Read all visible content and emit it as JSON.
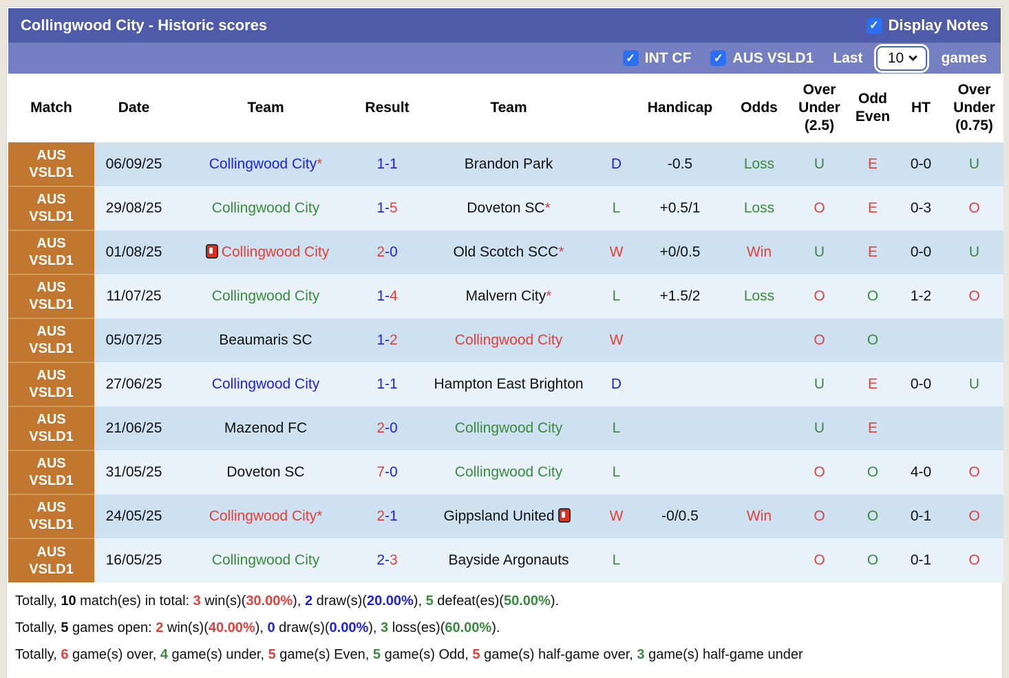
{
  "title_bar": {
    "title": "Collingwood City - Historic scores",
    "display_notes": {
      "label": "Display Notes",
      "checked": true
    }
  },
  "filter_bar": {
    "checkboxes": [
      {
        "label": "INT CF",
        "checked": true
      },
      {
        "label": "AUS VSLD1",
        "checked": true
      }
    ],
    "last_label": "Last",
    "games_count": "10",
    "games_label": "games"
  },
  "colors": {
    "title_bar_bg": "#4d5ba8",
    "filter_bar_bg": "#737fc1",
    "league_badge_bg": "#c1772f",
    "row_odd_bg": "#cde1f0",
    "row_even_bg": "#e9f2f9",
    "win_red": "#e2403a",
    "loss_green": "#3a8a3e",
    "draw_blue": "#2222dd",
    "checkbox_blue": "#2b6ff2"
  },
  "table": {
    "columns": [
      "Match",
      "Date",
      "Team",
      "Result",
      "Team",
      "",
      "Handicap",
      "Odds",
      "Over\nUnder\n(2.5)",
      "Odd\nEven",
      "HT",
      "Over\nUnder\n(0.75)"
    ],
    "rows": [
      {
        "league": "AUS VSLD1",
        "date": "06/09/25",
        "home": {
          "name": "Collingwood City",
          "color": "blue",
          "star": true,
          "icon": null,
          "icon_pos": null
        },
        "score": [
          {
            "t": "1",
            "c": "blue"
          },
          {
            "t": "1",
            "c": "blue"
          }
        ],
        "away": {
          "name": "Brandon Park",
          "color": "black",
          "star": false,
          "icon": null,
          "icon_pos": null
        },
        "letter": {
          "t": "D",
          "c": "blue"
        },
        "handicap": "-0.5",
        "odds": {
          "t": "Loss",
          "c": "green"
        },
        "ou25": {
          "t": "U",
          "c": "green"
        },
        "oe": {
          "t": "E",
          "c": "red"
        },
        "ht": "0-0",
        "ou075": {
          "t": "U",
          "c": "green"
        }
      },
      {
        "league": "AUS VSLD1",
        "date": "29/08/25",
        "home": {
          "name": "Collingwood City",
          "color": "green",
          "star": false,
          "icon": null,
          "icon_pos": null
        },
        "score": [
          {
            "t": "1",
            "c": "blue"
          },
          {
            "t": "5",
            "c": "red"
          }
        ],
        "away": {
          "name": "Doveton SC",
          "color": "black",
          "star": true,
          "icon": null,
          "icon_pos": null
        },
        "letter": {
          "t": "L",
          "c": "green"
        },
        "handicap": "+0.5/1",
        "odds": {
          "t": "Loss",
          "c": "green"
        },
        "ou25": {
          "t": "O",
          "c": "red"
        },
        "oe": {
          "t": "E",
          "c": "red"
        },
        "ht": "0-3",
        "ou075": {
          "t": "O",
          "c": "red"
        }
      },
      {
        "league": "AUS VSLD1",
        "date": "01/08/25",
        "home": {
          "name": "Collingwood City",
          "color": "red",
          "star": false,
          "icon": "red-card-icon",
          "icon_pos": "before"
        },
        "score": [
          {
            "t": "2",
            "c": "red"
          },
          {
            "t": "0",
            "c": "blue"
          }
        ],
        "away": {
          "name": "Old Scotch SCC",
          "color": "black",
          "star": true,
          "icon": null,
          "icon_pos": null
        },
        "letter": {
          "t": "W",
          "c": "red"
        },
        "handicap": "+0/0.5",
        "odds": {
          "t": "Win",
          "c": "red"
        },
        "ou25": {
          "t": "U",
          "c": "green"
        },
        "oe": {
          "t": "E",
          "c": "red"
        },
        "ht": "0-0",
        "ou075": {
          "t": "U",
          "c": "green"
        }
      },
      {
        "league": "AUS VSLD1",
        "date": "11/07/25",
        "home": {
          "name": "Collingwood City",
          "color": "green",
          "star": false,
          "icon": null,
          "icon_pos": null
        },
        "score": [
          {
            "t": "1",
            "c": "blue"
          },
          {
            "t": "4",
            "c": "red"
          }
        ],
        "away": {
          "name": "Malvern City",
          "color": "black",
          "star": true,
          "icon": null,
          "icon_pos": null
        },
        "letter": {
          "t": "L",
          "c": "green"
        },
        "handicap": "+1.5/2",
        "odds": {
          "t": "Loss",
          "c": "green"
        },
        "ou25": {
          "t": "O",
          "c": "red"
        },
        "oe": {
          "t": "O",
          "c": "green"
        },
        "ht": "1-2",
        "ou075": {
          "t": "O",
          "c": "red"
        }
      },
      {
        "league": "AUS VSLD1",
        "date": "05/07/25",
        "home": {
          "name": "Beaumaris SC",
          "color": "black",
          "star": false,
          "icon": null,
          "icon_pos": null
        },
        "score": [
          {
            "t": "1",
            "c": "blue"
          },
          {
            "t": "2",
            "c": "red"
          }
        ],
        "away": {
          "name": "Collingwood City",
          "color": "red",
          "star": false,
          "icon": null,
          "icon_pos": null
        },
        "letter": {
          "t": "W",
          "c": "red"
        },
        "handicap": "",
        "odds": {
          "t": "",
          "c": "black"
        },
        "ou25": {
          "t": "O",
          "c": "red"
        },
        "oe": {
          "t": "O",
          "c": "green"
        },
        "ht": "",
        "ou075": {
          "t": "",
          "c": "black"
        }
      },
      {
        "league": "AUS VSLD1",
        "date": "27/06/25",
        "home": {
          "name": "Collingwood City",
          "color": "blue",
          "star": false,
          "icon": null,
          "icon_pos": null
        },
        "score": [
          {
            "t": "1",
            "c": "blue"
          },
          {
            "t": "1",
            "c": "blue"
          }
        ],
        "away": {
          "name": "Hampton East Brighton",
          "color": "black",
          "star": false,
          "icon": null,
          "icon_pos": null
        },
        "letter": {
          "t": "D",
          "c": "blue"
        },
        "handicap": "",
        "odds": {
          "t": "",
          "c": "black"
        },
        "ou25": {
          "t": "U",
          "c": "green"
        },
        "oe": {
          "t": "E",
          "c": "red"
        },
        "ht": "0-0",
        "ou075": {
          "t": "U",
          "c": "green"
        }
      },
      {
        "league": "AUS VSLD1",
        "date": "21/06/25",
        "home": {
          "name": "Mazenod FC",
          "color": "black",
          "star": false,
          "icon": null,
          "icon_pos": null
        },
        "score": [
          {
            "t": "2",
            "c": "red"
          },
          {
            "t": "0",
            "c": "blue"
          }
        ],
        "away": {
          "name": "Collingwood City",
          "color": "green",
          "star": false,
          "icon": null,
          "icon_pos": null
        },
        "letter": {
          "t": "L",
          "c": "green"
        },
        "handicap": "",
        "odds": {
          "t": "",
          "c": "black"
        },
        "ou25": {
          "t": "U",
          "c": "green"
        },
        "oe": {
          "t": "E",
          "c": "red"
        },
        "ht": "",
        "ou075": {
          "t": "",
          "c": "black"
        }
      },
      {
        "league": "AUS VSLD1",
        "date": "31/05/25",
        "home": {
          "name": "Doveton SC",
          "color": "black",
          "star": false,
          "icon": null,
          "icon_pos": null
        },
        "score": [
          {
            "t": "7",
            "c": "red"
          },
          {
            "t": "0",
            "c": "blue"
          }
        ],
        "away": {
          "name": "Collingwood City",
          "color": "green",
          "star": false,
          "icon": null,
          "icon_pos": null
        },
        "letter": {
          "t": "L",
          "c": "green"
        },
        "handicap": "",
        "odds": {
          "t": "",
          "c": "black"
        },
        "ou25": {
          "t": "O",
          "c": "red"
        },
        "oe": {
          "t": "O",
          "c": "green"
        },
        "ht": "4-0",
        "ou075": {
          "t": "O",
          "c": "red"
        }
      },
      {
        "league": "AUS VSLD1",
        "date": "24/05/25",
        "home": {
          "name": "Collingwood City",
          "color": "red",
          "star": true,
          "icon": null,
          "icon_pos": null
        },
        "score": [
          {
            "t": "2",
            "c": "red"
          },
          {
            "t": "1",
            "c": "blue"
          }
        ],
        "away": {
          "name": "Gippsland United",
          "color": "black",
          "star": false,
          "icon": "red-card-icon",
          "icon_pos": "after"
        },
        "letter": {
          "t": "W",
          "c": "red"
        },
        "handicap": "-0/0.5",
        "odds": {
          "t": "Win",
          "c": "red"
        },
        "ou25": {
          "t": "O",
          "c": "red"
        },
        "oe": {
          "t": "O",
          "c": "green"
        },
        "ht": "0-1",
        "ou075": {
          "t": "O",
          "c": "red"
        }
      },
      {
        "league": "AUS VSLD1",
        "date": "16/05/25",
        "home": {
          "name": "Collingwood City",
          "color": "green",
          "star": false,
          "icon": null,
          "icon_pos": null
        },
        "score": [
          {
            "t": "2",
            "c": "blue"
          },
          {
            "t": "3",
            "c": "red"
          }
        ],
        "away": {
          "name": "Bayside Argonauts",
          "color": "black",
          "star": false,
          "icon": null,
          "icon_pos": null
        },
        "letter": {
          "t": "L",
          "c": "green"
        },
        "handicap": "",
        "odds": {
          "t": "",
          "c": "black"
        },
        "ou25": {
          "t": "O",
          "c": "red"
        },
        "oe": {
          "t": "O",
          "c": "green"
        },
        "ht": "0-1",
        "ou075": {
          "t": "O",
          "c": "red"
        }
      }
    ]
  },
  "footer": {
    "lines": [
      {
        "segments": [
          {
            "t": "Totally, ",
            "c": "black",
            "b": false
          },
          {
            "t": "10",
            "c": "black",
            "b": true
          },
          {
            "t": " match(es) in total: ",
            "c": "black",
            "b": false
          },
          {
            "t": "3",
            "c": "red",
            "b": true
          },
          {
            "t": " win(s)(",
            "c": "black",
            "b": false
          },
          {
            "t": "30.00%",
            "c": "red",
            "b": true
          },
          {
            "t": "), ",
            "c": "black",
            "b": false
          },
          {
            "t": "2",
            "c": "blue",
            "b": true
          },
          {
            "t": " draw(s)(",
            "c": "black",
            "b": false
          },
          {
            "t": "20.00%",
            "c": "blue",
            "b": true
          },
          {
            "t": "), ",
            "c": "black",
            "b": false
          },
          {
            "t": "5",
            "c": "green",
            "b": true
          },
          {
            "t": " defeat(es)(",
            "c": "black",
            "b": false
          },
          {
            "t": "50.00%",
            "c": "green",
            "b": true
          },
          {
            "t": ").",
            "c": "black",
            "b": false
          }
        ]
      },
      {
        "segments": [
          {
            "t": "Totally, ",
            "c": "black",
            "b": false
          },
          {
            "t": "5",
            "c": "black",
            "b": true
          },
          {
            "t": " games open: ",
            "c": "black",
            "b": false
          },
          {
            "t": "2",
            "c": "red",
            "b": true
          },
          {
            "t": " win(s)(",
            "c": "black",
            "b": false
          },
          {
            "t": "40.00%",
            "c": "red",
            "b": true
          },
          {
            "t": "), ",
            "c": "black",
            "b": false
          },
          {
            "t": "0",
            "c": "blue",
            "b": true
          },
          {
            "t": " draw(s)(",
            "c": "black",
            "b": false
          },
          {
            "t": "0.00%",
            "c": "blue",
            "b": true
          },
          {
            "t": "), ",
            "c": "black",
            "b": false
          },
          {
            "t": "3",
            "c": "green",
            "b": true
          },
          {
            "t": " loss(es)(",
            "c": "black",
            "b": false
          },
          {
            "t": "60.00%",
            "c": "green",
            "b": true
          },
          {
            "t": ").",
            "c": "black",
            "b": false
          }
        ]
      },
      {
        "segments": [
          {
            "t": "Totally, ",
            "c": "black",
            "b": false
          },
          {
            "t": "6",
            "c": "red",
            "b": true
          },
          {
            "t": " game(s) over, ",
            "c": "black",
            "b": false
          },
          {
            "t": "4",
            "c": "green",
            "b": true
          },
          {
            "t": " game(s) under, ",
            "c": "black",
            "b": false
          },
          {
            "t": "5",
            "c": "red",
            "b": true
          },
          {
            "t": " game(s) Even, ",
            "c": "black",
            "b": false
          },
          {
            "t": "5",
            "c": "green",
            "b": true
          },
          {
            "t": " game(s) Odd, ",
            "c": "black",
            "b": false
          },
          {
            "t": "5",
            "c": "red",
            "b": true
          },
          {
            "t": " game(s) half-game over, ",
            "c": "black",
            "b": false
          },
          {
            "t": "3",
            "c": "green",
            "b": true
          },
          {
            "t": " game(s) half-game under",
            "c": "black",
            "b": false
          }
        ]
      }
    ]
  }
}
